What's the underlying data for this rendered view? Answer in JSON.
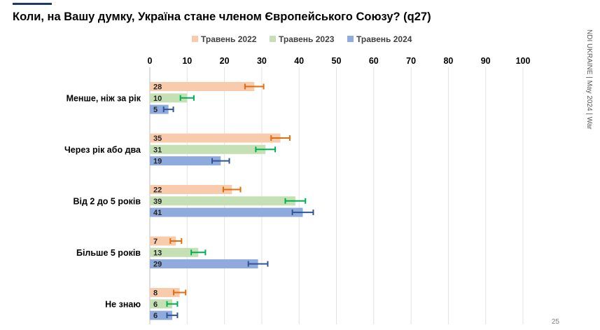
{
  "page": {
    "title": "Коли, на Вашу думку, Україна стане членом Європейського Союзу? (q27)",
    "side_note": "NDI UKRAINE | May 2024 | War",
    "page_number": "25",
    "accent_color": "#1f3864"
  },
  "chart_data": {
    "type": "bar",
    "orientation": "horizontal",
    "title": "Коли, на Вашу думку, Україна стане членом Європейського Союзу? (q27)",
    "xlabel": "",
    "ylabel": "",
    "xlim": [
      0,
      100
    ],
    "ticks": [
      0,
      10,
      20,
      30,
      40,
      50,
      60,
      70,
      80,
      90,
      100
    ],
    "tick_labels": [
      "0",
      "10",
      "20",
      "30",
      "40",
      "50",
      "60",
      "70",
      "80",
      "90",
      "100"
    ],
    "grid": true,
    "legend_position": "top",
    "categories": [
      "Менше, ніж за рік",
      "Через рік або два",
      "Від 2 до 5 років",
      "Більше 5 років",
      "Не знаю"
    ],
    "series": [
      {
        "name": "Травень 2022",
        "color": "#f8cbad",
        "error_color": "#e46c0a",
        "values": [
          28,
          35,
          22,
          7,
          8
        ],
        "value_labels": [
          "28",
          "35",
          "22",
          "7",
          "8"
        ],
        "error": [
          2.5,
          2.5,
          2.3,
          1.5,
          1.6
        ]
      },
      {
        "name": "Травень 2023",
        "color": "#c5e0b4",
        "error_color": "#00b050",
        "values": [
          10,
          31,
          39,
          13,
          6
        ],
        "value_labels": [
          "10",
          "31",
          "39",
          "13",
          "6"
        ],
        "error": [
          1.8,
          2.6,
          2.7,
          1.9,
          1.4
        ]
      },
      {
        "name": "Травень 2024",
        "color": "#8faadc",
        "error_color": "#2f5597",
        "values": [
          5,
          19,
          41,
          29,
          6
        ],
        "value_labels": [
          "5",
          "19",
          "41",
          "29",
          "6"
        ],
        "error": [
          1.3,
          2.3,
          2.8,
          2.6,
          1.4
        ]
      }
    ]
  }
}
